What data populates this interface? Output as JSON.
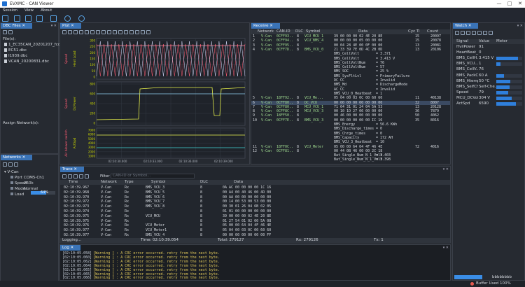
{
  "window": {
    "title": "EVXMC - CAN Viewer",
    "min": "—",
    "max": "□",
    "close": "✕"
  },
  "menu": [
    "Session",
    "View",
    "About"
  ],
  "dbc": {
    "title": "DBC Files",
    "files_label": "File(s):",
    "files": [
      "1_EC35CAN_20201207_fcdbc",
      "EC51.dbc",
      "I1939.dbc",
      "VCAN_20200831.dbc"
    ],
    "assign_label": "Assign Network(s):"
  },
  "networks": {
    "title": "Networks",
    "root": "V-Can",
    "rows": [
      {
        "k": "Port",
        "v": "COM5-Ch1"
      },
      {
        "k": "Speed",
        "v": "250k"
      },
      {
        "k": "Mode",
        "v": "Normal"
      },
      {
        "k": "Load",
        "v": "64%"
      }
    ],
    "load_fraction": 0.64
  },
  "plot": {
    "title": "Plot",
    "p1_ylabels": [
      "Speed",
      "Heat Load"
    ],
    "p2_ylabels": [
      "Speed",
      "DcPower"
    ],
    "p3_ylabels": [
      "Air blower switch",
      "ActSpd"
    ],
    "p1_ticks": [
      "300",
      "250",
      "200",
      "150",
      "100",
      "50",
      "0"
    ],
    "p2_ticks": [
      "800",
      "600",
      "400",
      "200",
      "0"
    ],
    "p3_ticks": [
      "7000",
      "6000",
      "5000",
      "4000",
      "3000",
      "2000",
      "1000"
    ],
    "x_ticks": [
      "02:10:30.000",
      "02:10:33.000",
      "02:10:36.000",
      "02:10:39.000"
    ]
  },
  "receive": {
    "title": "Receive",
    "columns": [
      "Network",
      "CAN-ID",
      "DLC",
      "Symbol",
      "Data",
      "Cyc Ti",
      "Count"
    ],
    "rows": [
      {
        "n": "1",
        "net": "V-Can",
        "id": "0CFF93..",
        "dlc": "8",
        "sym": "VCU_MCU_1",
        "data": "39 00 00 00 02 4E 20 8E",
        "cyc": "15",
        "cnt": "20097"
      },
      {
        "n": "2",
        "net": "V-Can",
        "id": "0CFF94..",
        "dlc": "8",
        "sym": "VCU_BMS_4",
        "data": "00 00 00 00 05 00 00 00",
        "cyc": "15",
        "cnt": "20078"
      },
      {
        "n": "3",
        "net": "V-Can",
        "id": "0CFF95..",
        "dlc": "8",
        "sym": "",
        "data": "00 04 28 4E 00 0F 00 00",
        "cyc": "13",
        "cnt": "20081"
      },
      {
        "n": "4",
        "net": "V-Can",
        "id": "0CFF7D..",
        "dlc": "8",
        "sym": "BMS_VCU_0",
        "data": "21 33 39 7E 0D 4C 2B 0D",
        "cyc": "13",
        "cnt": "20106"
      },
      {
        "n": "5",
        "net": "V-Can",
        "id": "18FF92..",
        "dlc": "8",
        "sym": "VCU_Me...",
        "data": "05 04 00 03 0C 00 60 60",
        "cyc": "11",
        "cnt": "40138"
      },
      {
        "n": "6",
        "net": "V-Can",
        "id": "0CFF80..",
        "dlc": "8",
        "sym": "DC_VCU",
        "data": "00 00 00 00 00 00 00 00",
        "cyc": "32",
        "cnt": "8007"
      },
      {
        "n": "7",
        "net": "V-Can",
        "id": "0CFF80..",
        "dlc": "8",
        "sym": "MCU_VCU_1",
        "data": "71 64 31 01 24 04 5A 53",
        "cyc": "13",
        "cnt": "20128"
      },
      {
        "n": "8",
        "net": "V-Can",
        "id": "0CFF8C..",
        "dlc": "8",
        "sym": "MCU_VCU_3",
        "data": "00 10 1D 27 06 00 00 00",
        "cyc": "36",
        "cnt": "7879"
      },
      {
        "n": "9",
        "net": "V-Can",
        "id": "18FF50..",
        "dlc": "8",
        "sym": "",
        "data": "00 46 00 00 00 00 00 00",
        "cyc": "50",
        "cnt": "4062"
      },
      {
        "n": "10",
        "net": "V-Can",
        "id": "0CFF7E..",
        "dlc": "8",
        "sym": "BMS_VCU_3",
        "data": "00 00 00 00 00 00 IC 16",
        "cyc": "35",
        "cnt": "8016"
      },
      {
        "n": "11",
        "net": "V-Can",
        "id": "18FF0C..",
        "dlc": "8",
        "sym": "VCU_Meter",
        "data": "05 00 00 64 04 4F 46 4E",
        "cyc": "72",
        "cnt": "4016"
      },
      {
        "n": "12",
        "net": "V-Can",
        "id": "0CFF81..",
        "dlc": "8",
        "sym": "",
        "data": "00 44 0B 46 00 00 2C 18",
        "cyc": "",
        "cnt": ""
      }
    ],
    "sig4": [
      [
        "BMS_CellVolt",
        "= 3.371"
      ],
      [
        "BMS_CellVolt",
        "= 3.413 V"
      ],
      [
        "BMS_CellVoltNum",
        "= 76"
      ],
      [
        "BMS_CellVoltNum",
        "= 57"
      ],
      [
        "BMS_SOC",
        "= 25 %"
      ],
      [
        "BMS_SysFltLvl",
        "= PrimaryFailure"
      ],
      [
        "DC_CC",
        "= Invalid"
      ],
      [
        "BMS_Md",
        "= DischargeMode"
      ],
      [
        "AC_CC",
        "= Invalid"
      ],
      [
        "BMS_VCU_0_Heatbeat",
        "= 1"
      ]
    ],
    "sig10": [
      [
        "BMS_Energy",
        "= 56.6 KWh"
      ],
      [
        "BMS_Discharge_times",
        "= 0"
      ],
      [
        "BMS_Chrge_times",
        "= 0"
      ],
      [
        "BMS_Capacity",
        "= 172 AH"
      ],
      [
        "BMS_VCU_3_Heatbeat",
        "= 10"
      ]
    ],
    "sig12": [
      [
        "Bat_Single_Num_N_1_Volt",
        "= 3.403"
      ],
      [
        "Bat_Single_Num_N_1_Volt",
        "= 3.398"
      ]
    ]
  },
  "trace": {
    "title": "Trace",
    "filter_label": "Filter",
    "filter_placeholder": "CAN-ID or Symbol...",
    "columns": [
      "Time",
      "Network",
      "Type",
      "Symbol",
      "DLC",
      "Data"
    ],
    "rows": [
      [
        "02:10:39.967",
        "V-Can",
        "Rx",
        "BMS_VCU_3",
        "8",
        "0A AC 00 00 00 00 1C 16"
      ],
      [
        "02:10:39.968",
        "V-Can",
        "Rx",
        "BMS_VCU_5",
        "8",
        "00 A4 00 40 46 00 4D 00"
      ],
      [
        "02:10:39.970",
        "V-Can",
        "Rx",
        "BMS_VCU_6",
        "8",
        "00 AA 00 00 00 00 00 00"
      ],
      [
        "02:10:39.972",
        "V-Can",
        "Rx",
        "BMS_VCU_7",
        "8",
        "00 14 00 53 00 53 00 00"
      ],
      [
        "02:10:39.973",
        "V-Can",
        "Rx",
        "BMS_VCU_8",
        "8",
        "00 30 01 26 04 6B 02 05"
      ],
      [
        "02:10:39.974",
        "V-Can",
        "Rx",
        "",
        "8",
        "01 01 00 00 00 00 00 00"
      ],
      [
        "02:10:39.975",
        "V-Can",
        "Rx",
        "VCU_MCU",
        "8",
        "39 00 00 00 02 4E 20 8E"
      ],
      [
        "02:10:39.975",
        "V-Can",
        "Rx",
        "",
        "8",
        "01 27 54 01 02 00 5A 08"
      ],
      [
        "02:10:39.976",
        "V-Can",
        "Rx",
        "VCU_Meter",
        "8",
        "05 00 00 64 04 4F 46 4E"
      ],
      [
        "02:10:39.977",
        "V-Can",
        "Rx",
        "VCU_Meter1",
        "8",
        "05 04 00 03 0C 00 60 60"
      ],
      [
        "02:10:39.977",
        "V-Can",
        "Rx",
        "BMS_VCU_4",
        "8",
        "00 00 00 00 00 00 00 FF"
      ]
    ],
    "status": {
      "logging": "Logging...",
      "time": "Time: 02:10:39.054",
      "total": "Total: 279127",
      "rx": "Rx: 279126",
      "tx": "Tx: 1"
    }
  },
  "log": {
    "title": "Log",
    "lines": [
      [
        "[02:10:05.058]",
        "[Warning ] : A CRC error occurred. retry from the next byte."
      ],
      [
        "[02:10:05.060]",
        "[Warning ] : A CRC error occurred. retry from the next byte."
      ],
      [
        "[02:10:05.062]",
        "[Warning ] : A CRC error occurred. retry from the next byte."
      ],
      [
        "[02:10:05.064]",
        "[Warning ] : A CRC error occurred. retry from the next byte."
      ],
      [
        "[02:10:05.065]",
        "[Warning ] : A CRC error occurred. retry from the next byte."
      ],
      [
        "[02:10:05.065]",
        "[Warning ] : A CRC error occurred. retry from the next byte."
      ],
      [
        "[02:10:05.066]",
        "[Warning ] : A CRC error occurred. retry from the next byte."
      ]
    ]
  },
  "watch": {
    "title": "Watch",
    "columns": [
      "Signal",
      "Value",
      "Meter"
    ],
    "rows": [
      {
        "s": "HvilPower",
        "v": "91",
        "m": 0
      },
      {
        "s": "HeartBeat_0",
        "v": "0",
        "m": 0
      },
      {
        "s": "BMS_CellH...",
        "v": "3.415 V",
        "m": 0.85
      },
      {
        "s": "BMS_VCU...",
        "v": "1",
        "m": 0.15
      },
      {
        "s": "BMS_CellV...",
        "v": "76",
        "m": 0
      },
      {
        "s": "BMS_PackC...",
        "v": "60 A",
        "m": 0.3
      },
      {
        "s": "BMS_Htemp",
        "v": "50 °C",
        "m": 0.55
      },
      {
        "s": "BMS_SelfCh...",
        "v": "Self-Che..",
        "m": 0.5
      },
      {
        "s": "Speed",
        "v": "79",
        "m": 0.45
      },
      {
        "s": "MCU_DCVolt",
        "v": "304 V",
        "m": 0.6
      },
      {
        "s": "ActSpd",
        "v": "6590",
        "m": 0.75
      }
    ],
    "footer": "bbbbbbbb"
  },
  "statusbar": {
    "text": "Buffer Used 100%"
  }
}
